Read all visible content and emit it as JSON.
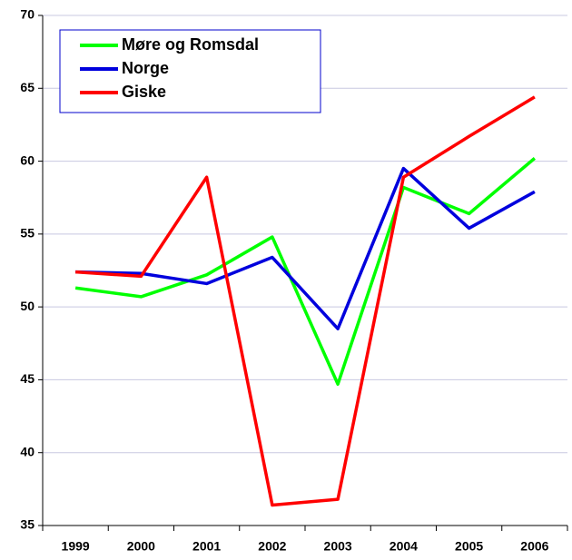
{
  "chart_data": {
    "type": "line",
    "categories": [
      "1999",
      "2000",
      "2001",
      "2002",
      "2003",
      "2004",
      "2005",
      "2006"
    ],
    "series": [
      {
        "name": "Møre og Romsdal",
        "color": "#00ff00",
        "values": [
          51.3,
          50.7,
          52.2,
          54.8,
          44.7,
          58.2,
          56.4,
          60.2
        ]
      },
      {
        "name": "Norge",
        "color": "#0000dd",
        "values": [
          52.4,
          52.3,
          51.6,
          53.4,
          48.5,
          59.5,
          55.4,
          57.9
        ]
      },
      {
        "name": "Giske",
        "color": "#ff0000",
        "values": [
          52.4,
          52.1,
          58.9,
          36.4,
          36.8,
          58.9,
          61.7,
          64.4
        ]
      }
    ],
    "ylim": [
      35,
      70
    ],
    "yticks": [
      35,
      40,
      45,
      50,
      55,
      60,
      65,
      70
    ],
    "grid": true,
    "legend": "top-left"
  }
}
